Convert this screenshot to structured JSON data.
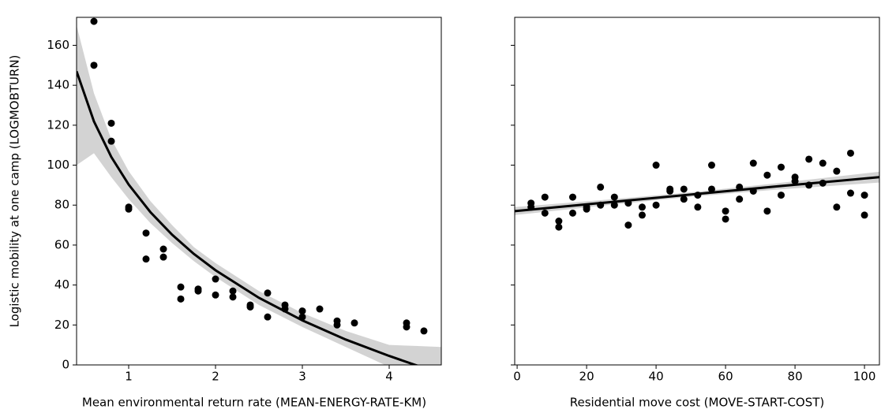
{
  "chart_data": [
    {
      "type": "scatter",
      "xlabel": "Mean environmental return rate (MEAN-ENERGY-RATE-KM)",
      "ylabel": "Logistic mobility at one camp (LOGMOBTURN)",
      "x": [
        0.6,
        0.6,
        0.8,
        0.8,
        1.0,
        1.0,
        1.2,
        1.2,
        1.4,
        1.4,
        1.6,
        1.6,
        1.8,
        1.8,
        2.0,
        2.0,
        2.2,
        2.2,
        2.4,
        2.4,
        2.6,
        2.6,
        2.8,
        2.8,
        3.0,
        3.0,
        3.2,
        3.4,
        3.4,
        3.6,
        4.2,
        4.2,
        4.4
      ],
      "values": [
        172,
        150,
        121,
        112,
        79,
        78,
        66,
        53,
        58,
        54,
        39,
        33,
        38,
        37,
        43,
        35,
        37,
        34,
        30,
        29,
        36,
        24,
        30,
        28,
        27,
        24,
        28,
        22,
        20,
        21,
        21,
        19,
        17
      ],
      "color": "#000000",
      "trend": {
        "x": [
          0.4,
          0.6,
          0.8,
          1,
          1.25,
          1.5,
          1.75,
          2,
          2.5,
          3,
          3.5,
          4,
          4.3,
          4.6
        ],
        "values": [
          147,
          121.9,
          104.1,
          90.3,
          76.5,
          65.2,
          55.6,
          47.4,
          33.6,
          22.3,
          12.7,
          4.5,
          0,
          -4.2
        ],
        "lower": [
          100,
          106,
          94,
          83,
          71,
          61,
          52,
          44,
          30,
          19,
          9,
          -1,
          -5,
          -8
        ],
        "upper": [
          170,
          136,
          113,
          97,
          82,
          70,
          59,
          51,
          37,
          26,
          17,
          10,
          9.5,
          9
        ],
        "color": "#000000",
        "band_color": "#d3d3d3"
      },
      "xlim": [
        0.4,
        4.6
      ],
      "ylim": [
        0,
        174
      ],
      "xticks": [
        1,
        2,
        3,
        4
      ],
      "yticks": [
        0,
        20,
        40,
        60,
        80,
        100,
        120,
        140,
        160
      ]
    },
    {
      "type": "scatter",
      "xlabel": "Residential move cost (MOVE-START-COST)",
      "x": [
        4,
        4,
        8,
        8,
        12,
        12,
        16,
        16,
        20,
        20,
        24,
        24,
        28,
        28,
        32,
        32,
        36,
        36,
        40,
        40,
        44,
        44,
        48,
        48,
        52,
        52,
        56,
        56,
        60,
        60,
        64,
        64,
        68,
        68,
        72,
        72,
        76,
        76,
        80,
        80,
        84,
        84,
        88,
        88,
        92,
        92,
        96,
        96,
        100,
        100
      ],
      "values": [
        81,
        79,
        84,
        76,
        72,
        69,
        84,
        76,
        79,
        78,
        89,
        80,
        84,
        80,
        81,
        70,
        79,
        75,
        100,
        80,
        88,
        87,
        88,
        83,
        85,
        79,
        100,
        88,
        77,
        73,
        89,
        83,
        101,
        87,
        95,
        77,
        99,
        85,
        94,
        92,
        103,
        90,
        101,
        91,
        97,
        79,
        106,
        86,
        85,
        75
      ],
      "color": "#000000",
      "trend": {
        "x": [
          -0.7,
          25,
          50,
          75,
          104.3
        ],
        "values": [
          77,
          81.2,
          85.3,
          89.4,
          94
        ],
        "lower": [
          75,
          79.8,
          84.2,
          87.8,
          91.3
        ],
        "upper": [
          79,
          82.6,
          86.4,
          91,
          96.7
        ],
        "color": "#000000",
        "band_color": "#d3d3d3"
      },
      "xlim": [
        -0.7,
        104.3
      ],
      "ylim": [
        0,
        174
      ],
      "sharey": true,
      "xticks": [
        0,
        20,
        40,
        60,
        80,
        100
      ]
    }
  ]
}
